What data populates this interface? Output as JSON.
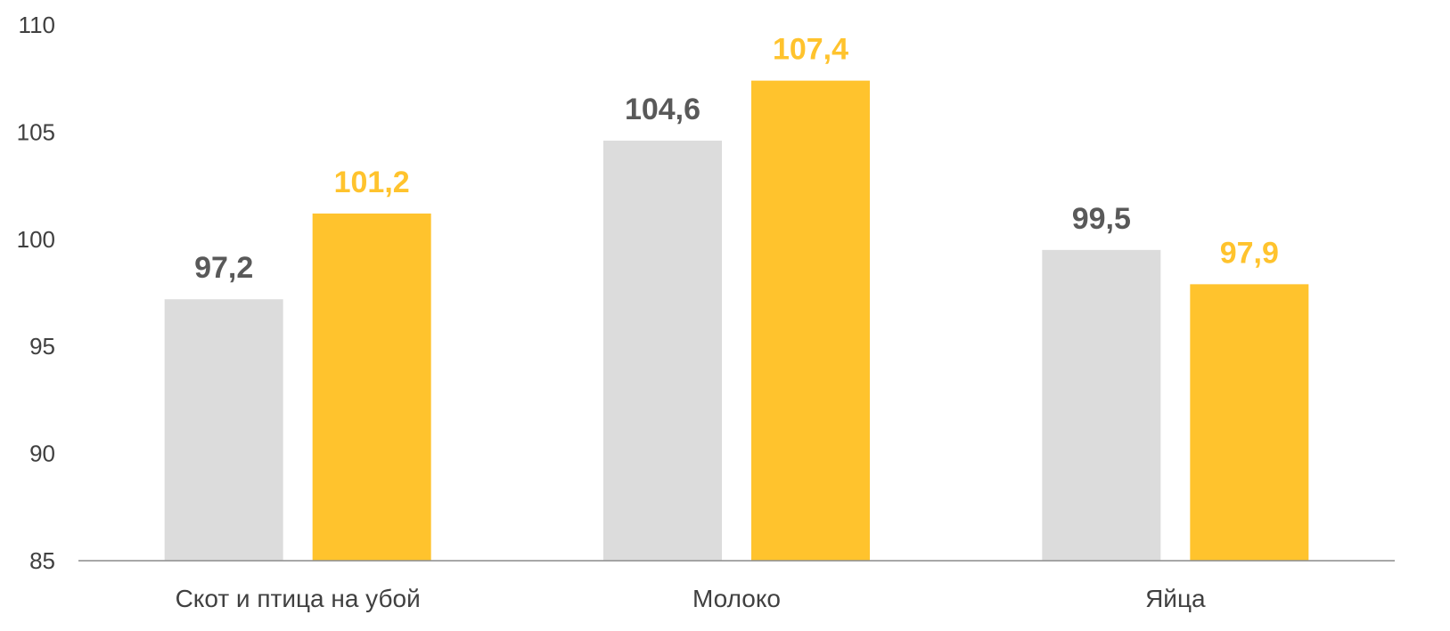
{
  "chart_data": {
    "type": "bar",
    "categories": [
      "Скот и птица на убой",
      "Молоко",
      "Яйца"
    ],
    "series": [
      {
        "values": [
          97.2,
          104.6,
          99.5
        ],
        "labels": [
          "97,2",
          "104,6",
          "99,5"
        ],
        "color": "#DCDCDC",
        "label_color": "#595959"
      },
      {
        "values": [
          101.2,
          107.4,
          97.9
        ],
        "labels": [
          "101,2",
          "107,4",
          "97,9"
        ],
        "color": "#FFC32D",
        "label_color": "#FFC32D"
      }
    ],
    "ylim": [
      85,
      110
    ],
    "y_ticks": [
      85,
      90,
      95,
      100,
      105,
      110
    ],
    "y_tick_labels": [
      "85",
      "90",
      "95",
      "100",
      "105",
      "110"
    ],
    "grid": false,
    "legend": "none",
    "axis_color": "#8C8C8C"
  }
}
